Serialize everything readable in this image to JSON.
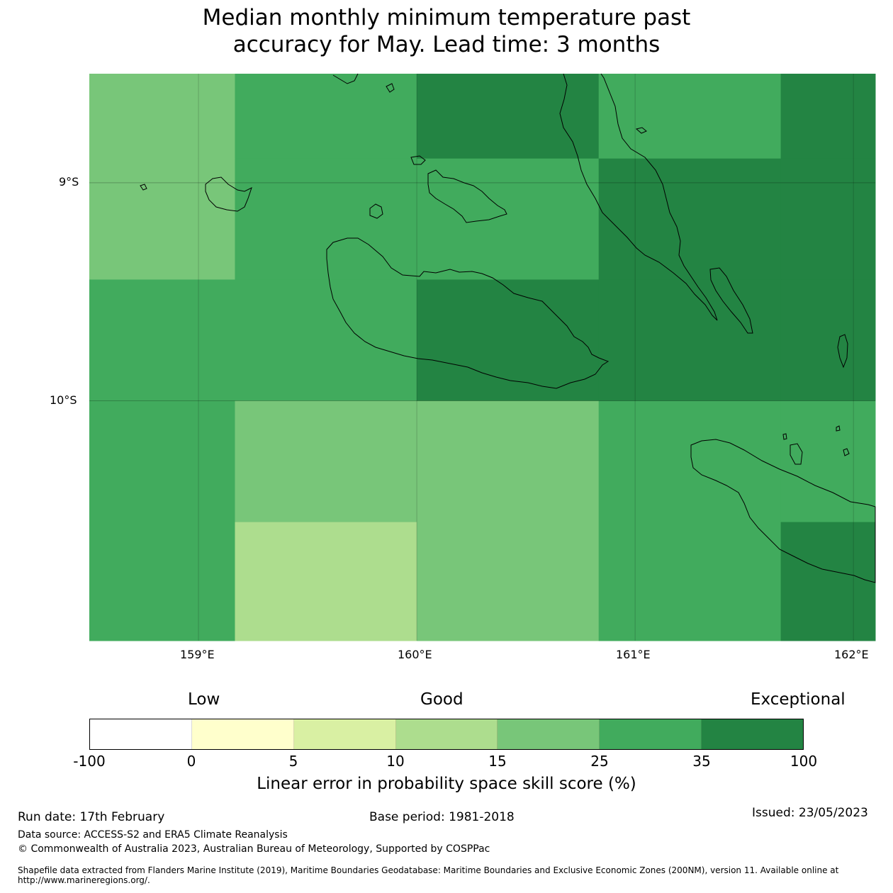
{
  "title": {
    "line1": "Median monthly minimum temperature past",
    "line2": "accuracy for May. Lead time: 3 months"
  },
  "map": {
    "lon_range": [
      158.5,
      162.1
    ],
    "lat_range": [
      -11.1,
      -8.5
    ],
    "grid_lons": [
      159,
      160,
      161,
      162
    ],
    "grid_lats": [
      -9,
      -10
    ],
    "x_ticks": [
      "159°E",
      "160°E",
      "161°E",
      "162°E"
    ],
    "y_ticks": [
      "9°S",
      "10°S"
    ],
    "cell_edges_lon": [
      158.5,
      159.167,
      160.0,
      160.833,
      161.667,
      162.1
    ],
    "cell_edges_lat": [
      -8.5,
      -8.889,
      -9.444,
      -10.0,
      -10.556,
      -11.1
    ],
    "cells": [
      [
        "c15",
        "c25",
        "c35",
        "c25",
        "c35"
      ],
      [
        "c15",
        "c25",
        "c25",
        "c35",
        "c35"
      ],
      [
        "c25",
        "c25",
        "c35",
        "c35",
        "c35"
      ],
      [
        "c25",
        "c15",
        "c15",
        "c25",
        "c25"
      ],
      [
        "c25",
        "c10",
        "c15",
        "c25",
        "c35"
      ]
    ],
    "colors": {
      "c10": "#addd8e",
      "c15": "#78c679",
      "c25": "#41ab5d",
      "c35": "#238443"
    }
  },
  "colorbar": {
    "low_label": "Low",
    "good_label": "Good",
    "exceptional_label": "Exceptional",
    "ticks": [
      "-100",
      "0",
      "5",
      "10",
      "15",
      "25",
      "35",
      "100"
    ],
    "colors": [
      "#ffffff",
      "#ffffcc",
      "#d9f0a3",
      "#addd8e",
      "#78c679",
      "#41ab5d",
      "#238443"
    ],
    "label": "Linear error in probability space skill score (%)"
  },
  "footer": {
    "run_date": "Run date: 17th February",
    "base_period": "Base period: 1981-2018",
    "issued": "Issued: 23/05/2023",
    "data_source": "Data source: ACCESS-S2 and ERA5 Climate Reanalysis",
    "copyright": "© Commonwealth of Australia 2023, Australian Bureau of Meteorology, Supported by COSPPac",
    "shapefile": "Shapefile data extracted from Flanders Marine Institute (2019), Maritime Boundaries Geodatabase: Maritime Boundaries and Exclusive Economic Zones (200NM), version 11. Available online at http://www.marineregions.org/."
  }
}
